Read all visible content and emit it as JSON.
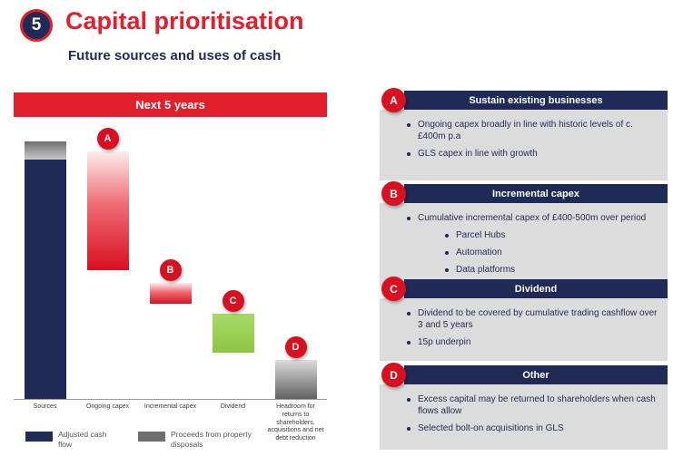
{
  "header": {
    "number": "5",
    "title": "Capital prioritisation",
    "subtitle": "Future sources and uses of cash"
  },
  "colors": {
    "red": "#e2202b",
    "navy": "#1f2a56",
    "green": "#8cc63f",
    "grey": "#6e6e6e",
    "panel_grey": "#dcdcdc"
  },
  "chart": {
    "banner": "Next 5 years",
    "legend": [
      {
        "label": "Adjusted cash flow",
        "color": "#1f2a56"
      },
      {
        "label": "Proceeds from property disposals",
        "color": "#6e6e6e"
      }
    ]
  },
  "chart_data": {
    "type": "bar",
    "subtype": "waterfall",
    "title": "Next 5 years",
    "ylim": [
      0,
      100
    ],
    "grid": false,
    "categories": [
      "Sources",
      "Ongoing capex",
      "Incremental capex",
      "Dividend",
      "Headroom for returns to shareholders, acquisitions and net debt reduction"
    ],
    "segments": [
      {
        "key": "sources",
        "name": "Sources",
        "start": 0,
        "end": 100,
        "color": "navy",
        "cap": {
          "start": 93,
          "end": 100,
          "meaning": "Proceeds from property disposals"
        }
      },
      {
        "key": "ongoing-capex",
        "name": "Ongoing capex",
        "start": 96,
        "end": 50,
        "color": "red",
        "marker": "A"
      },
      {
        "key": "incremental-capex",
        "name": "Incremental capex",
        "start": 45,
        "end": 37,
        "color": "red",
        "marker": "B"
      },
      {
        "key": "dividend",
        "name": "Dividend",
        "start": 33,
        "end": 18,
        "color": "green",
        "marker": "C"
      },
      {
        "key": "headroom",
        "name": "Headroom",
        "start": 15,
        "end": 0,
        "color": "grey",
        "marker": "D"
      }
    ]
  },
  "sections": [
    {
      "letter": "A",
      "title": "Sustain existing businesses",
      "bullets": [
        {
          "text": "Ongoing capex broadly in line with historic levels of c.£400m p.a",
          "level": 1
        },
        {
          "text": "GLS capex in line with growth",
          "level": 1
        }
      ]
    },
    {
      "letter": "B",
      "title": "Incremental capex",
      "bullets": [
        {
          "text": "Cumulative incremental capex of £400-500m over period",
          "level": 1
        },
        {
          "text": "Parcel Hubs",
          "level": 2
        },
        {
          "text": "Automation",
          "level": 2
        },
        {
          "text": "Data platforms",
          "level": 2
        }
      ]
    },
    {
      "letter": "C",
      "title": "Dividend",
      "bullets": [
        {
          "text": "Dividend to be covered by cumulative trading cashflow over 3 and 5 years",
          "level": 1
        },
        {
          "text": "15p underpin",
          "level": 1
        }
      ]
    },
    {
      "letter": "D",
      "title": "Other",
      "bullets": [
        {
          "text": "Excess capital may be returned to shareholders when cash flows allow",
          "level": 1
        },
        {
          "text": "Selected bolt-on acquisitions in GLS",
          "level": 1
        }
      ]
    }
  ]
}
